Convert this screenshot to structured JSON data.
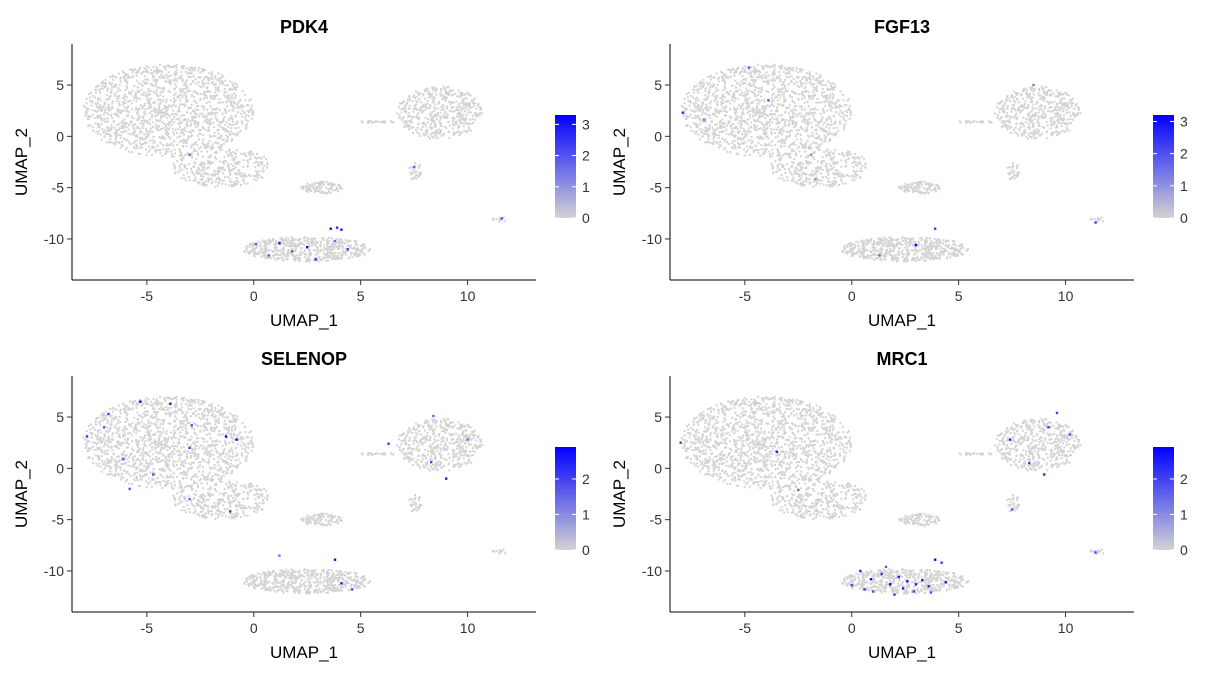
{
  "chart_data": [
    {
      "type": "scatter",
      "title": "PDK4",
      "xlabel": "UMAP_1",
      "ylabel": "UMAP_2",
      "xlim": [
        -8.5,
        13.2
      ],
      "ylim": [
        -14,
        9
      ],
      "xticks": [
        -5,
        0,
        5,
        10
      ],
      "yticks": [
        5,
        0,
        -5,
        -10
      ],
      "legend": {
        "position": "right",
        "min": 0,
        "max": 3.3,
        "ticks": [
          0,
          1,
          2,
          3
        ],
        "low_color": "#d3d3d3",
        "high_color": "#0000ff"
      },
      "clusters": [
        {
          "cx": -4.0,
          "cy": 2.5,
          "rx": 4.0,
          "ry": 4.5,
          "n": 1400
        },
        {
          "cx": -1.5,
          "cy": -3.0,
          "rx": 2.3,
          "ry": 2.0,
          "n": 320
        },
        {
          "cx": 2.5,
          "cy": -11.0,
          "rx": 3.0,
          "ry": 1.2,
          "n": 520
        },
        {
          "cx": 3.2,
          "cy": -5.0,
          "rx": 1.0,
          "ry": 0.6,
          "n": 90
        },
        {
          "cx": 8.7,
          "cy": 2.3,
          "rx": 2.0,
          "ry": 2.6,
          "n": 470
        },
        {
          "cx": 7.5,
          "cy": -3.3,
          "rx": 0.35,
          "ry": 0.9,
          "n": 30
        },
        {
          "cx": 11.5,
          "cy": -8.1,
          "rx": 0.35,
          "ry": 0.25,
          "n": 12
        },
        {
          "cx": 5.7,
          "cy": 1.4,
          "rx": 1.0,
          "ry": 0.1,
          "n": 22
        }
      ],
      "expressed": [
        {
          "x": 0.1,
          "y": -10.5,
          "v": 2.0
        },
        {
          "x": 1.2,
          "y": -10.4,
          "v": 2.8
        },
        {
          "x": 2.5,
          "y": -10.8,
          "v": 3.2
        },
        {
          "x": 3.6,
          "y": -9.0,
          "v": 3.0
        },
        {
          "x": 3.9,
          "y": -8.9,
          "v": 2.6
        },
        {
          "x": 4.1,
          "y": -9.1,
          "v": 2.9
        },
        {
          "x": 4.4,
          "y": -11.0,
          "v": 2.2
        },
        {
          "x": 1.8,
          "y": -11.2,
          "v": 1.8
        },
        {
          "x": 2.9,
          "y": -12.0,
          "v": 2.4
        },
        {
          "x": -3.0,
          "y": -1.8,
          "v": 1.5
        },
        {
          "x": 7.5,
          "y": -3.0,
          "v": 1.8
        },
        {
          "x": 11.6,
          "y": -8.0,
          "v": 2.0
        },
        {
          "x": 3.8,
          "y": -10.2,
          "v": 1.6
        },
        {
          "x": 0.7,
          "y": -11.6,
          "v": 1.9
        }
      ]
    },
    {
      "type": "scatter",
      "title": "FGF13",
      "xlabel": "UMAP_1",
      "ylabel": "UMAP_2",
      "xlim": [
        -8.5,
        13.2
      ],
      "ylim": [
        -14,
        9
      ],
      "xticks": [
        -5,
        0,
        5,
        10
      ],
      "yticks": [
        5,
        0,
        -5,
        -10
      ],
      "legend": {
        "position": "right",
        "min": 0,
        "max": 3.2,
        "ticks": [
          0,
          1,
          2,
          3
        ],
        "low_color": "#d3d3d3",
        "high_color": "#0000ff"
      },
      "clusters": [
        {
          "cx": -4.0,
          "cy": 2.5,
          "rx": 4.0,
          "ry": 4.5,
          "n": 1400
        },
        {
          "cx": -1.5,
          "cy": -3.0,
          "rx": 2.3,
          "ry": 2.0,
          "n": 320
        },
        {
          "cx": 2.5,
          "cy": -11.0,
          "rx": 3.0,
          "ry": 1.2,
          "n": 520
        },
        {
          "cx": 3.2,
          "cy": -5.0,
          "rx": 1.0,
          "ry": 0.6,
          "n": 90
        },
        {
          "cx": 8.7,
          "cy": 2.3,
          "rx": 2.0,
          "ry": 2.6,
          "n": 470
        },
        {
          "cx": 7.5,
          "cy": -3.3,
          "rx": 0.35,
          "ry": 0.9,
          "n": 30
        },
        {
          "cx": 11.5,
          "cy": -8.1,
          "rx": 0.35,
          "ry": 0.25,
          "n": 12
        },
        {
          "cx": 5.7,
          "cy": 1.4,
          "rx": 1.0,
          "ry": 0.1,
          "n": 22
        }
      ],
      "expressed": [
        {
          "x": -7.9,
          "y": 2.3,
          "v": 2.5
        },
        {
          "x": -4.8,
          "y": 6.7,
          "v": 1.8
        },
        {
          "x": -3.9,
          "y": 3.5,
          "v": 2.0
        },
        {
          "x": -6.9,
          "y": 1.6,
          "v": 1.5
        },
        {
          "x": -1.9,
          "y": -1.8,
          "v": 1.2
        },
        {
          "x": -1.7,
          "y": -4.2,
          "v": 1.0
        },
        {
          "x": 3.0,
          "y": -10.6,
          "v": 3.2
        },
        {
          "x": 3.9,
          "y": -9.0,
          "v": 2.4
        },
        {
          "x": 1.3,
          "y": -11.6,
          "v": 1.7
        },
        {
          "x": 11.4,
          "y": -8.4,
          "v": 2.2
        },
        {
          "x": 8.5,
          "y": 5.0,
          "v": 1.4
        }
      ]
    },
    {
      "type": "scatter",
      "title": "SELENOP",
      "xlabel": "UMAP_1",
      "ylabel": "UMAP_2",
      "xlim": [
        -8.5,
        13.2
      ],
      "ylim": [
        -14,
        9
      ],
      "xticks": [
        -5,
        0,
        5,
        10
      ],
      "yticks": [
        5,
        0,
        -5,
        -10
      ],
      "legend": {
        "position": "right",
        "min": 0,
        "max": 2.9,
        "ticks": [
          0,
          1,
          2
        ],
        "low_color": "#d3d3d3",
        "high_color": "#0000ff"
      },
      "clusters": [
        {
          "cx": -4.0,
          "cy": 2.5,
          "rx": 4.0,
          "ry": 4.5,
          "n": 1400
        },
        {
          "cx": -1.5,
          "cy": -3.0,
          "rx": 2.3,
          "ry": 2.0,
          "n": 320
        },
        {
          "cx": 2.5,
          "cy": -11.0,
          "rx": 3.0,
          "ry": 1.2,
          "n": 520
        },
        {
          "cx": 3.2,
          "cy": -5.0,
          "rx": 1.0,
          "ry": 0.6,
          "n": 90
        },
        {
          "cx": 8.7,
          "cy": 2.3,
          "rx": 2.0,
          "ry": 2.6,
          "n": 470
        },
        {
          "cx": 7.5,
          "cy": -3.3,
          "rx": 0.35,
          "ry": 0.9,
          "n": 30
        },
        {
          "cx": 11.5,
          "cy": -8.1,
          "rx": 0.35,
          "ry": 0.25,
          "n": 12
        },
        {
          "cx": 5.7,
          "cy": 1.4,
          "rx": 1.0,
          "ry": 0.1,
          "n": 22
        }
      ],
      "expressed": [
        {
          "x": -5.3,
          "y": 6.5,
          "v": 2.8
        },
        {
          "x": -3.9,
          "y": 6.3,
          "v": 2.6
        },
        {
          "x": -6.8,
          "y": 5.3,
          "v": 2.0
        },
        {
          "x": -7.8,
          "y": 3.1,
          "v": 2.2
        },
        {
          "x": -1.3,
          "y": 3.1,
          "v": 2.9
        },
        {
          "x": -0.8,
          "y": 2.8,
          "v": 2.7
        },
        {
          "x": -2.9,
          "y": 4.2,
          "v": 1.8
        },
        {
          "x": -6.1,
          "y": 0.9,
          "v": 1.6
        },
        {
          "x": -3.0,
          "y": 2.0,
          "v": 2.1
        },
        {
          "x": -4.7,
          "y": -0.6,
          "v": 1.9
        },
        {
          "x": -5.8,
          "y": -2.0,
          "v": 1.7
        },
        {
          "x": -1.1,
          "y": -4.2,
          "v": 2.0
        },
        {
          "x": -3.0,
          "y": -3.0,
          "v": 1.5
        },
        {
          "x": -7.0,
          "y": 4.0,
          "v": 1.8
        },
        {
          "x": 3.8,
          "y": -8.9,
          "v": 2.7
        },
        {
          "x": 4.1,
          "y": -11.2,
          "v": 2.5
        },
        {
          "x": 4.6,
          "y": -11.8,
          "v": 2.0
        },
        {
          "x": 1.2,
          "y": -8.5,
          "v": 1.4
        },
        {
          "x": 6.3,
          "y": 2.4,
          "v": 2.2
        },
        {
          "x": 8.3,
          "y": 0.6,
          "v": 1.9
        },
        {
          "x": 9.0,
          "y": -1.0,
          "v": 2.6
        },
        {
          "x": 10.0,
          "y": 2.8,
          "v": 1.4
        },
        {
          "x": 8.4,
          "y": 5.1,
          "v": 1.5
        }
      ]
    },
    {
      "type": "scatter",
      "title": "MRC1",
      "xlabel": "UMAP_1",
      "ylabel": "UMAP_2",
      "xlim": [
        -8.5,
        13.2
      ],
      "ylim": [
        -14,
        9
      ],
      "xticks": [
        -5,
        0,
        5,
        10
      ],
      "yticks": [
        5,
        0,
        -5,
        -10
      ],
      "legend": {
        "position": "right",
        "min": 0,
        "max": 2.9,
        "ticks": [
          0,
          1,
          2
        ],
        "low_color": "#d3d3d3",
        "high_color": "#0000ff"
      },
      "clusters": [
        {
          "cx": -4.0,
          "cy": 2.5,
          "rx": 4.0,
          "ry": 4.5,
          "n": 1400
        },
        {
          "cx": -1.5,
          "cy": -3.0,
          "rx": 2.3,
          "ry": 2.0,
          "n": 320
        },
        {
          "cx": 2.5,
          "cy": -11.0,
          "rx": 3.0,
          "ry": 1.2,
          "n": 520
        },
        {
          "cx": 3.2,
          "cy": -5.0,
          "rx": 1.0,
          "ry": 0.6,
          "n": 90
        },
        {
          "cx": 8.7,
          "cy": 2.3,
          "rx": 2.0,
          "ry": 2.6,
          "n": 470
        },
        {
          "cx": 7.5,
          "cy": -3.3,
          "rx": 0.35,
          "ry": 0.9,
          "n": 30
        },
        {
          "cx": 11.5,
          "cy": -8.1,
          "rx": 0.35,
          "ry": 0.25,
          "n": 12
        },
        {
          "cx": 5.7,
          "cy": 1.4,
          "rx": 1.0,
          "ry": 0.1,
          "n": 22
        }
      ],
      "expressed": [
        {
          "x": 0.4,
          "y": -10.0,
          "v": 2.4
        },
        {
          "x": 0.9,
          "y": -10.8,
          "v": 2.8
        },
        {
          "x": 1.4,
          "y": -10.3,
          "v": 2.2
        },
        {
          "x": 1.8,
          "y": -11.3,
          "v": 2.9
        },
        {
          "x": 2.2,
          "y": -10.6,
          "v": 2.5
        },
        {
          "x": 2.6,
          "y": -11.0,
          "v": 2.7
        },
        {
          "x": 2.9,
          "y": -12.0,
          "v": 2.0
        },
        {
          "x": 3.3,
          "y": -10.9,
          "v": 2.6
        },
        {
          "x": 3.6,
          "y": -11.5,
          "v": 2.3
        },
        {
          "x": 3.9,
          "y": -8.9,
          "v": 2.8
        },
        {
          "x": 4.2,
          "y": -9.2,
          "v": 2.1
        },
        {
          "x": 4.4,
          "y": -11.1,
          "v": 2.5
        },
        {
          "x": 1.0,
          "y": -12.0,
          "v": 1.8
        },
        {
          "x": 0.0,
          "y": -11.4,
          "v": 2.0
        },
        {
          "x": 2.0,
          "y": -12.3,
          "v": 2.2
        },
        {
          "x": 3.7,
          "y": -12.1,
          "v": 1.9
        },
        {
          "x": 1.6,
          "y": -9.6,
          "v": 1.7
        },
        {
          "x": 0.6,
          "y": -11.8,
          "v": 2.1
        },
        {
          "x": 2.4,
          "y": -11.7,
          "v": 2.6
        },
        {
          "x": 3.0,
          "y": -11.3,
          "v": 2.4
        },
        {
          "x": -8.0,
          "y": 2.5,
          "v": 2.0
        },
        {
          "x": -3.5,
          "y": 1.6,
          "v": 2.4
        },
        {
          "x": -2.5,
          "y": -2.1,
          "v": 1.6
        },
        {
          "x": 9.2,
          "y": 4.0,
          "v": 2.2
        },
        {
          "x": 9.6,
          "y": 5.4,
          "v": 2.0
        },
        {
          "x": 7.4,
          "y": 2.8,
          "v": 2.5
        },
        {
          "x": 8.3,
          "y": 0.5,
          "v": 2.1
        },
        {
          "x": 10.2,
          "y": 3.3,
          "v": 1.8
        },
        {
          "x": 9.0,
          "y": -0.6,
          "v": 2.3
        },
        {
          "x": 7.5,
          "y": -4.0,
          "v": 1.7
        },
        {
          "x": 11.4,
          "y": -8.2,
          "v": 2.0
        }
      ]
    }
  ]
}
